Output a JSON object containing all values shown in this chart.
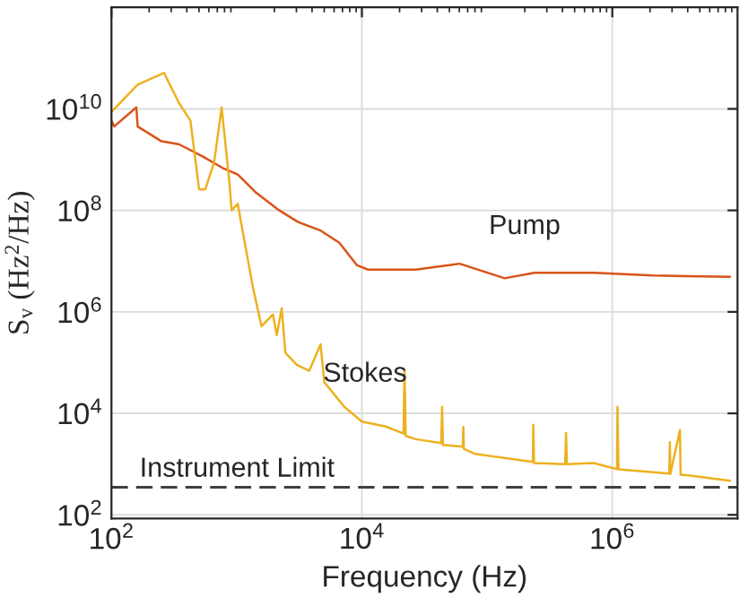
{
  "chart_data": {
    "type": "line",
    "xlabel": "Frequency (Hz)",
    "ylabel": "S$_{v}$ (Hz$^{2}$/Hz)",
    "log": "xy",
    "grid": true,
    "legend": false,
    "xlim": [
      100,
      10000000
    ],
    "ylim": [
      85,
      1000000000000
    ],
    "xticks": [
      {
        "value": 100,
        "label": "10$^{2}$"
      },
      {
        "value": 10000,
        "label": "10$^{4}$"
      },
      {
        "value": 1000000,
        "label": "10$^{6}$"
      }
    ],
    "yticks": [
      {
        "value": 100,
        "label": "10$^{2}$"
      },
      {
        "value": 10000,
        "label": "10$^{4}$"
      },
      {
        "value": 1000000,
        "label": "10$^{6}$"
      },
      {
        "value": 100000000,
        "label": "10$^{8}$"
      },
      {
        "value": 10000000000,
        "label": "10$^{10}$"
      }
    ],
    "series": [
      {
        "name": "Pump",
        "color": "#d95319",
        "x": [
          100,
          105,
          158,
          162,
          251,
          347,
          537,
          776,
          1020,
          1410,
          2190,
          3090,
          4680,
          6610,
          9120,
          11200,
          26900,
          60300,
          138000,
          240000,
          708000,
          2090000,
          8710000
        ],
        "values": [
          5900000000.0,
          4500000000.0,
          10700000000.0,
          4500000000.0,
          2300000000.0,
          2000000000.0,
          1150000000.0,
          680000000.0,
          510000000.0,
          230000000.0,
          100000000.0,
          59000000.0,
          40000000.0,
          23000000.0,
          8300000.0,
          6800000.0,
          6800000.0,
          8900000.0,
          4600000.0,
          5900000.0,
          5900000.0,
          5200000.0,
          4900000.0
        ]
      },
      {
        "name": "Stokes",
        "color": "#edb120",
        "x": [
          100,
          162,
          263,
          347,
          427,
          501,
          562,
          661,
          759,
          871,
          912,
          1020,
          1150,
          1350,
          1580,
          1950,
          2090,
          2290,
          2450,
          3020,
          3800,
          4680,
          5010,
          7240,
          10000,
          15500,
          21500,
          21900,
          22400,
          26900,
          43000,
          43700,
          44400,
          64000,
          64600,
          65200,
          79400,
          232000,
          234000,
          237000,
          420000,
          427000,
          434000,
          708000,
          1090000,
          1100000,
          1120000,
          2850000,
          2880000,
          2910000,
          3470000,
          3510000,
          4070000,
          8710000
        ],
        "values": [
          8700000000.0,
          30000000000.0,
          51000000000.0,
          13000000000.0,
          5900000000.0,
          260000000.0,
          260000000.0,
          890000000.0,
          10700000000.0,
          400000000.0,
          100000000.0,
          135000000.0,
          26000000.0,
          3000000.0,
          520000.0,
          890000.0,
          350000.0,
          1170000.0,
          155000.0,
          91000.0,
          69000.0,
          230000.0,
          41000.0,
          13500.0,
          6900.0,
          5500.0,
          4000.0,
          69000.0,
          3600.0,
          3100.0,
          2600.0,
          13500.0,
          2400.0,
          2200.0,
          5400.0,
          2000.0,
          1600.0,
          1100.0,
          6000.0,
          1050.0,
          1000.0,
          4100.0,
          1000.0,
          1050.0,
          800.0,
          13500.0,
          790.0,
          650.0,
          2700.0,
          640.0,
          4700.0,
          620.0,
          600.0,
          470.0
        ]
      }
    ],
    "ref_lines": [
      {
        "axis": "y",
        "value": 350,
        "label": "Instrument Limit",
        "color": "#404040",
        "line_style": "dashed"
      }
    ]
  }
}
